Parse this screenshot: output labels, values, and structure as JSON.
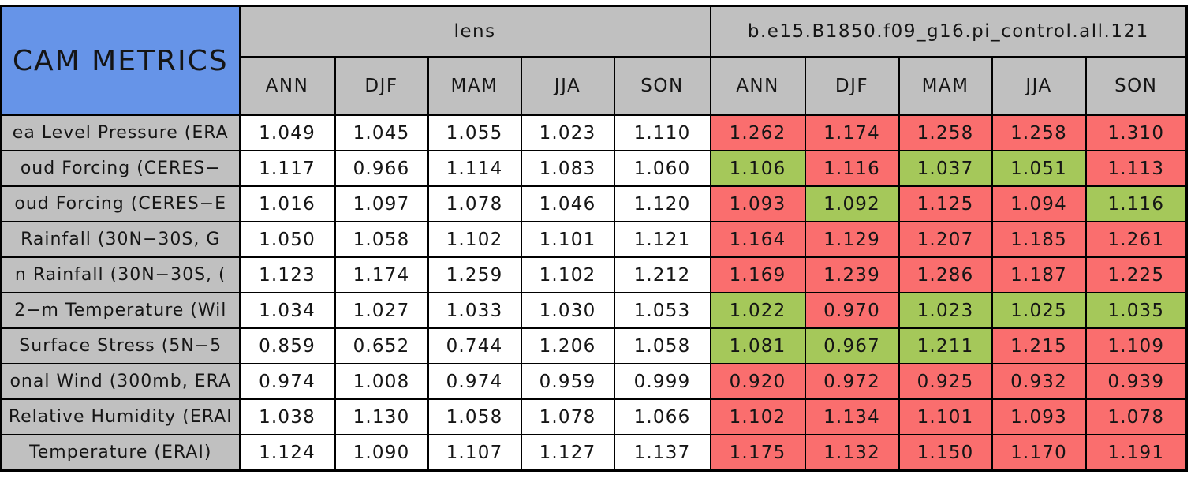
{
  "colors": {
    "corner_blue": "#6694E8",
    "header_gray": "#C0C0C0",
    "worse_red": "#FA6E6E",
    "better_green": "#A5C85A",
    "neutral_white": "#FFFFFF",
    "border_black": "#000000"
  },
  "chart_data": {
    "type": "table",
    "title": "CAM METRICS",
    "column_groups": [
      "lens",
      "b.e15.B1850.f09_g16.pi_control.all.121"
    ],
    "seasons": [
      "ANN",
      "DJF",
      "MAM",
      "JJA",
      "SON"
    ],
    "rows": [
      {
        "label": "ea Level Pressure (ERA",
        "lens": [
          "1.049",
          "1.045",
          "1.055",
          "1.023",
          "1.110"
        ],
        "control": [
          "1.262",
          "1.174",
          "1.258",
          "1.258",
          "1.310"
        ],
        "control_colors": [
          "red",
          "red",
          "red",
          "red",
          "red"
        ]
      },
      {
        "label": "oud Forcing (CERES−",
        "lens": [
          "1.117",
          "0.966",
          "1.114",
          "1.083",
          "1.060"
        ],
        "control": [
          "1.106",
          "1.116",
          "1.037",
          "1.051",
          "1.113"
        ],
        "control_colors": [
          "green",
          "red",
          "green",
          "green",
          "red"
        ]
      },
      {
        "label": "oud Forcing (CERES−E",
        "lens": [
          "1.016",
          "1.097",
          "1.078",
          "1.046",
          "1.120"
        ],
        "control": [
          "1.093",
          "1.092",
          "1.125",
          "1.094",
          "1.116"
        ],
        "control_colors": [
          "red",
          "green",
          "red",
          "red",
          "green"
        ]
      },
      {
        "label": "Rainfall (30N−30S, G",
        "lens": [
          "1.050",
          "1.058",
          "1.102",
          "1.101",
          "1.121"
        ],
        "control": [
          "1.164",
          "1.129",
          "1.207",
          "1.185",
          "1.261"
        ],
        "control_colors": [
          "red",
          "red",
          "red",
          "red",
          "red"
        ]
      },
      {
        "label": "n Rainfall (30N−30S, (",
        "lens": [
          "1.123",
          "1.174",
          "1.259",
          "1.102",
          "1.212"
        ],
        "control": [
          "1.169",
          "1.239",
          "1.286",
          "1.187",
          "1.225"
        ],
        "control_colors": [
          "red",
          "red",
          "red",
          "red",
          "red"
        ]
      },
      {
        "label": "2−m Temperature (Wil",
        "lens": [
          "1.034",
          "1.027",
          "1.033",
          "1.030",
          "1.053"
        ],
        "control": [
          "1.022",
          "0.970",
          "1.023",
          "1.025",
          "1.035"
        ],
        "control_colors": [
          "green",
          "red",
          "green",
          "green",
          "green"
        ]
      },
      {
        "label": "Surface Stress (5N−5",
        "lens": [
          "0.859",
          "0.652",
          "0.744",
          "1.206",
          "1.058"
        ],
        "control": [
          "1.081",
          "0.967",
          "1.211",
          "1.215",
          "1.109"
        ],
        "control_colors": [
          "green",
          "green",
          "green",
          "red",
          "red"
        ]
      },
      {
        "label": "onal Wind (300mb, ERA",
        "lens": [
          "0.974",
          "1.008",
          "0.974",
          "0.959",
          "0.999"
        ],
        "control": [
          "0.920",
          "0.972",
          "0.925",
          "0.932",
          "0.939"
        ],
        "control_colors": [
          "red",
          "red",
          "red",
          "red",
          "red"
        ]
      },
      {
        "label": "Relative Humidity (ERAI",
        "lens": [
          "1.038",
          "1.130",
          "1.058",
          "1.078",
          "1.066"
        ],
        "control": [
          "1.102",
          "1.134",
          "1.101",
          "1.093",
          "1.078"
        ],
        "control_colors": [
          "red",
          "red",
          "red",
          "red",
          "red"
        ]
      },
      {
        "label": "Temperature (ERAI)",
        "lens": [
          "1.124",
          "1.090",
          "1.107",
          "1.127",
          "1.137"
        ],
        "control": [
          "1.175",
          "1.132",
          "1.150",
          "1.170",
          "1.191"
        ],
        "control_colors": [
          "red",
          "red",
          "red",
          "red",
          "red"
        ]
      }
    ]
  }
}
